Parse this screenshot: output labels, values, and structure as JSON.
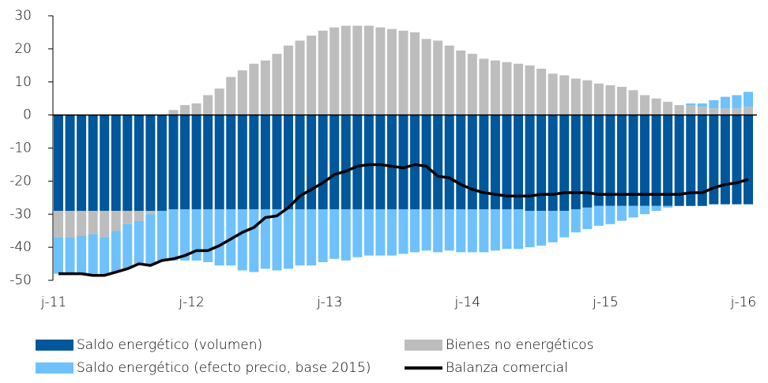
{
  "chart_data": {
    "type": "bar",
    "categories": [
      "j-11",
      null,
      null,
      null,
      null,
      null,
      null,
      null,
      null,
      null,
      null,
      null,
      "j-12",
      null,
      null,
      null,
      null,
      null,
      null,
      null,
      null,
      null,
      null,
      null,
      "j-13",
      null,
      null,
      null,
      null,
      null,
      null,
      null,
      null,
      null,
      null,
      null,
      "j-14",
      null,
      null,
      null,
      null,
      null,
      null,
      null,
      null,
      null,
      null,
      null,
      "j-15",
      null,
      null,
      null,
      null,
      null,
      null,
      null,
      null,
      null,
      null,
      null,
      "j-16"
    ],
    "series": [
      {
        "name": "Saldo energético (volumen)",
        "color": "#00579b",
        "type": "bar",
        "values": [
          -29,
          -29,
          -29,
          -29,
          -29,
          -29,
          -29,
          -29,
          -29,
          -29,
          -28.5,
          -28.5,
          -28.5,
          -28.5,
          -28.5,
          -28.5,
          -28.5,
          -28.5,
          -28.5,
          -28.5,
          -28.5,
          -28.5,
          -28.5,
          -28.5,
          -28.5,
          -28.5,
          -28.5,
          -28.5,
          -28.5,
          -28.5,
          -28.5,
          -28.5,
          -28.5,
          -28.5,
          -28.5,
          -28.5,
          -28.5,
          -28.5,
          -28.5,
          -28.5,
          -28.5,
          -29,
          -29,
          -29,
          -29,
          -28.5,
          -28,
          -27.5,
          -27.5,
          -27.5,
          -27.5,
          -27.5,
          -27.5,
          -27.5,
          -27.5,
          -27.5,
          -27.5,
          -27,
          -27,
          -27,
          -27
        ]
      },
      {
        "name": "Bienes no energéticos",
        "color": "#bdbdbd",
        "type": "bar",
        "values": [
          -8,
          -8,
          -7.5,
          -7,
          -8,
          -6,
          -4,
          -3,
          -1,
          0,
          1.5,
          3,
          3.5,
          6,
          8,
          11.5,
          13.5,
          15.5,
          16.5,
          18.5,
          21,
          22.5,
          24,
          25.5,
          26.5,
          27,
          27,
          27,
          26.5,
          26,
          25.5,
          25,
          23,
          22.5,
          21,
          19.5,
          18.5,
          17,
          16.5,
          16,
          15.5,
          15,
          14,
          12.5,
          12,
          11,
          10.5,
          9.5,
          9,
          8.5,
          7.5,
          6,
          5,
          4,
          3,
          3,
          2.5,
          2,
          2,
          2,
          2.5
        ]
      },
      {
        "name": "Saldo energético (efecto precio, base 2015)",
        "color": "#6ec1fb",
        "type": "bar",
        "values": [
          -11,
          -11,
          -11.5,
          -12.5,
          -11.5,
          -12.5,
          -13.5,
          -13,
          -15.5,
          -15,
          -15.5,
          -15.5,
          -15.5,
          -16,
          -17,
          -17,
          -18.5,
          -19,
          -18,
          -18.5,
          -18,
          -17,
          -17,
          -16,
          -15,
          -15.5,
          -14.5,
          -14,
          -14,
          -14,
          -13.5,
          -13,
          -12.5,
          -13,
          -12.5,
          -13,
          -13,
          -13,
          -12.5,
          -12,
          -12,
          -11,
          -10.5,
          -9.5,
          -8,
          -7,
          -6.5,
          -6,
          -5.5,
          -4.5,
          -3.5,
          -2.5,
          -1.5,
          -0.5,
          0,
          0.5,
          1,
          2.5,
          3.5,
          4,
          4.5
        ]
      },
      {
        "name": "Balanza comercial",
        "color": "#000000",
        "type": "line",
        "values": [
          -48,
          -48,
          -48,
          -48.5,
          -48.5,
          -47.5,
          -46.5,
          -45,
          -45.5,
          -44,
          -43.5,
          -42.5,
          -41,
          -41,
          -39.5,
          -37.5,
          -35.5,
          -34,
          -31,
          -30.5,
          -28,
          -24.5,
          -22.5,
          -20.5,
          -18,
          -17,
          -15.5,
          -15,
          -15,
          -15.5,
          -16,
          -15,
          -15.5,
          -18.5,
          -19,
          -21,
          -22.5,
          -23.5,
          -24,
          -24.5,
          -24.5,
          -24.5,
          -24,
          -24,
          -23.5,
          -23.5,
          -23.5,
          -24,
          -24,
          -24,
          -24,
          -24,
          -24,
          -24,
          -24,
          -23.5,
          -23.5,
          -22,
          -21,
          -20.5,
          -19.5
        ]
      }
    ],
    "ylim": [
      -50,
      30
    ],
    "yticks": [
      -50,
      -40,
      -30,
      -20,
      -10,
      0,
      10,
      20,
      30
    ]
  }
}
